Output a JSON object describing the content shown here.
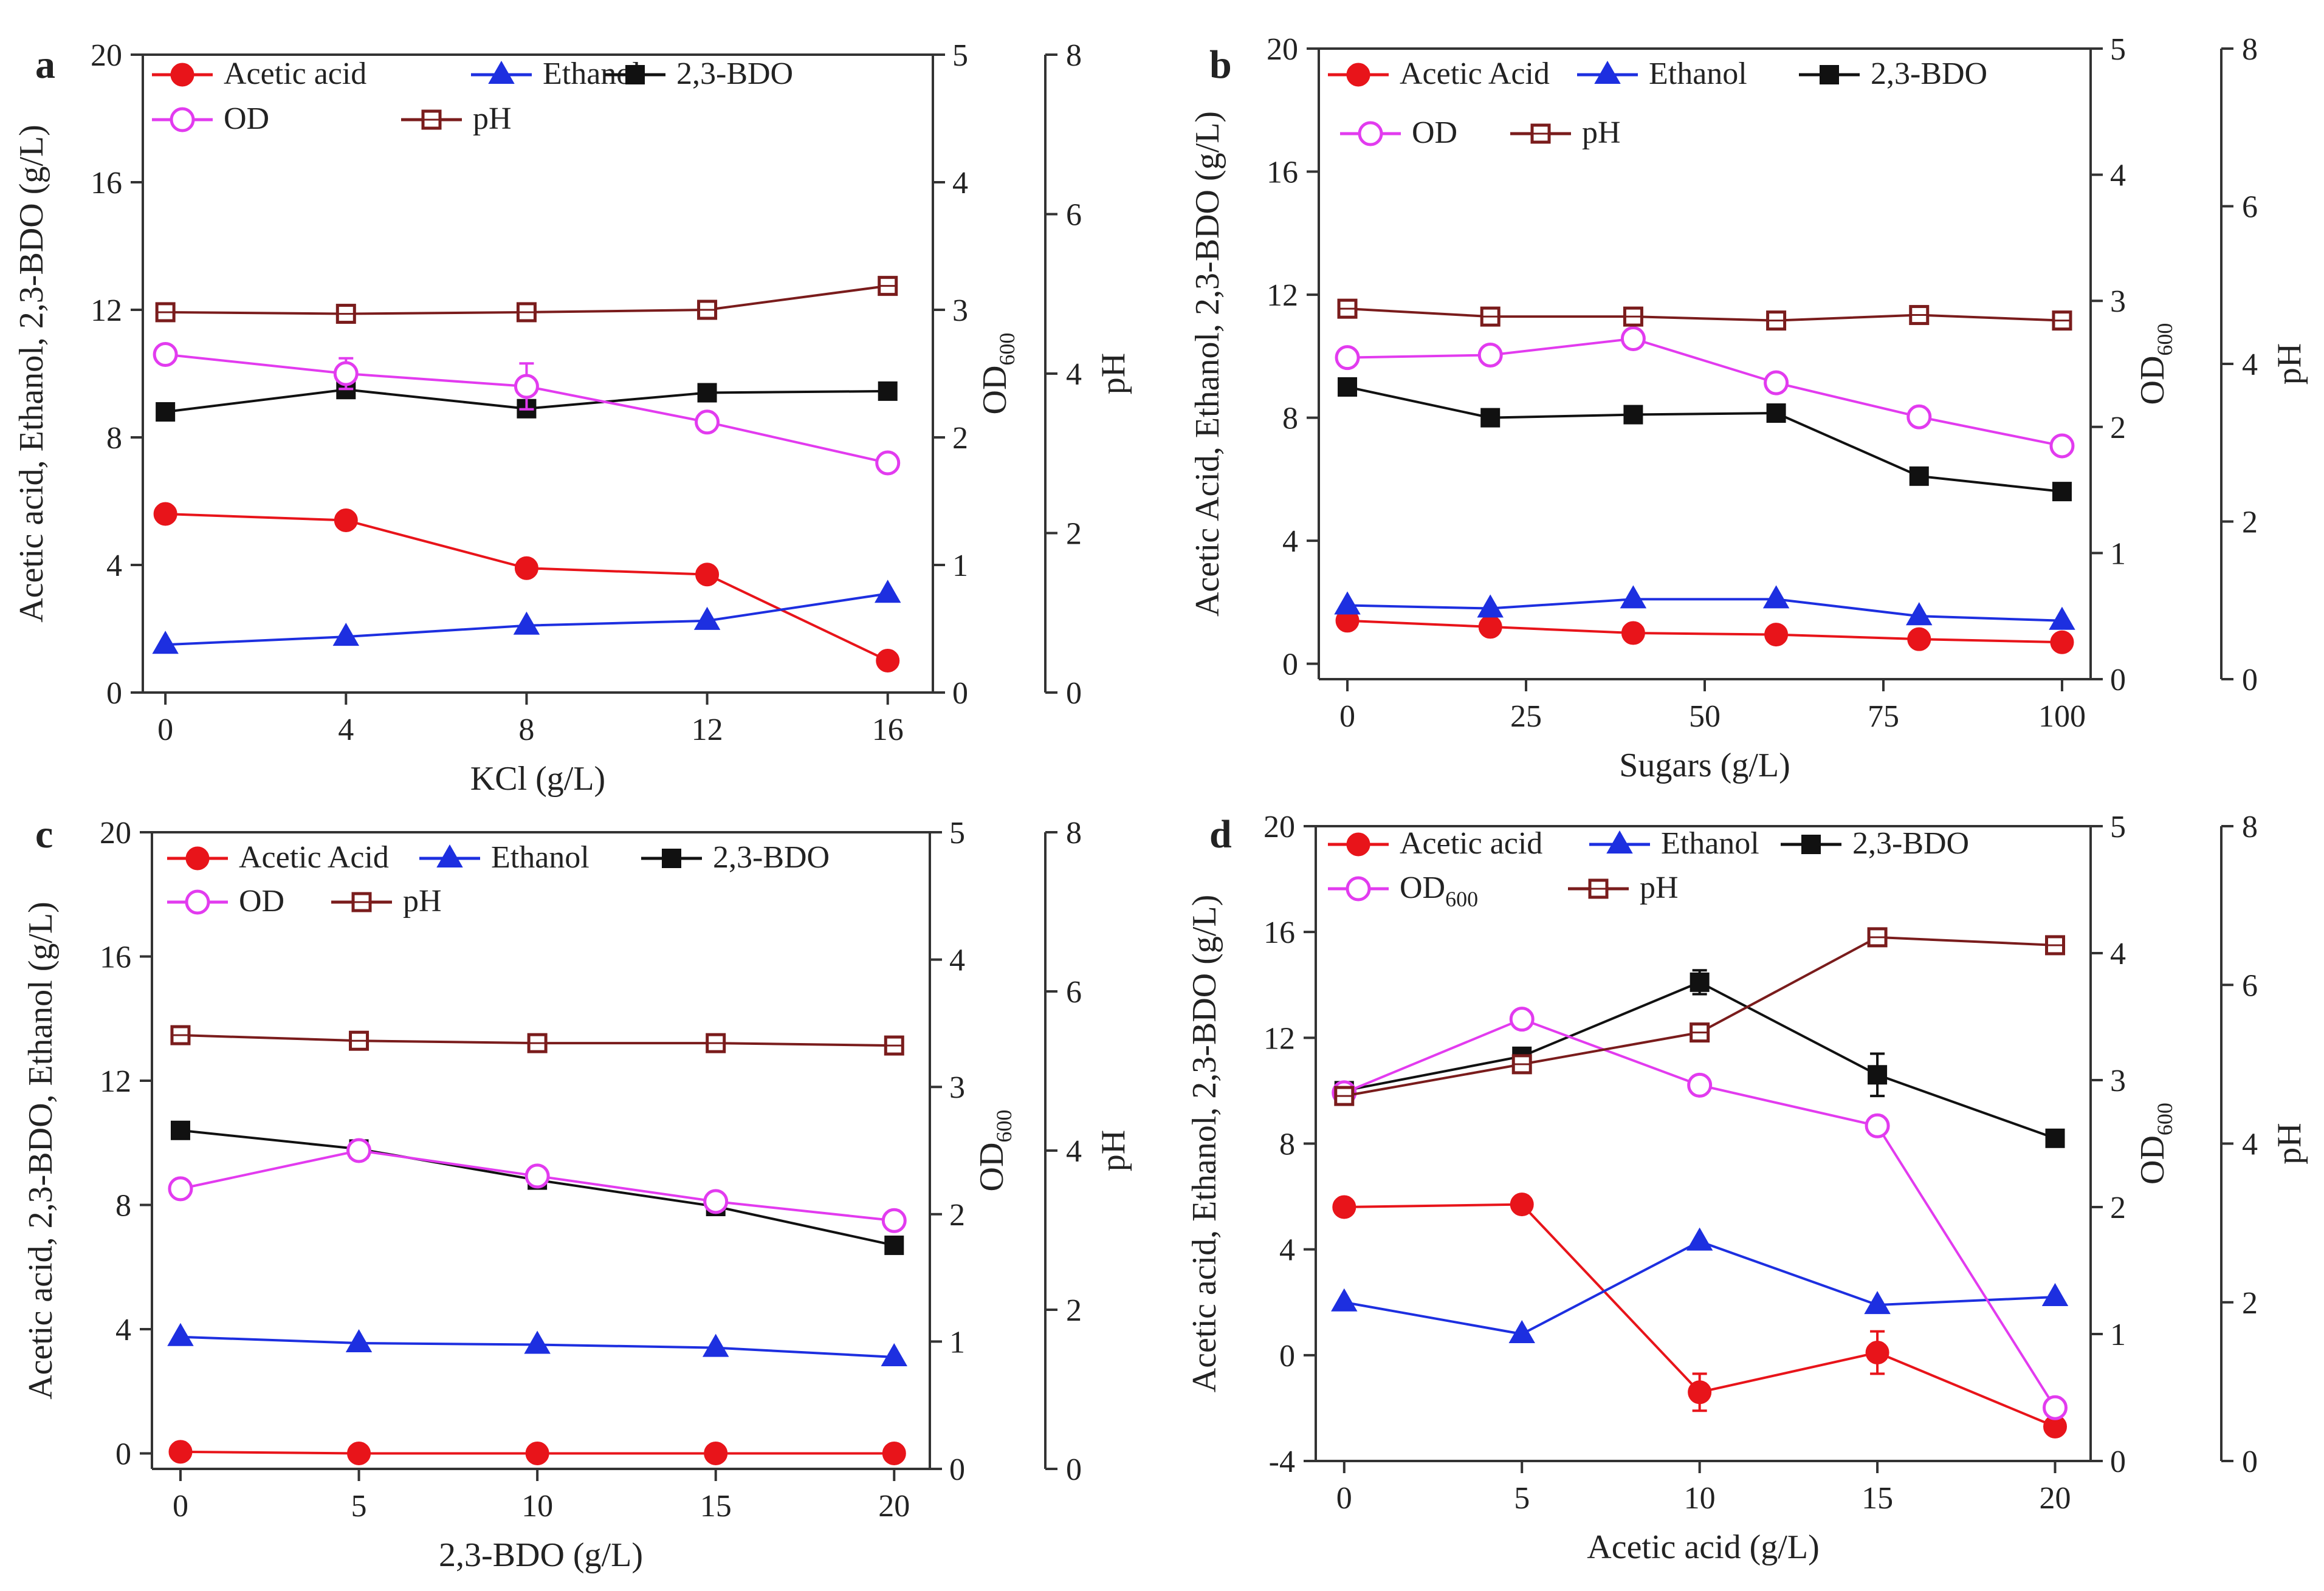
{
  "colors": {
    "axis": "#333333",
    "acetic": "#e8141a",
    "ethanol": "#1d2fe0",
    "bdo": "#111111",
    "od": "#e23bef",
    "ph": "#7a1c1c"
  },
  "chart_data": [
    {
      "panel": "a",
      "type": "line",
      "xlabel": "KCl  (g/L)",
      "ylabel": "Acetic acid, Ethanol, 2,3-BDO (g/L)",
      "y2label": "OD",
      "y2label_sub": "600",
      "y3label": "pH",
      "x": [
        0,
        4,
        8,
        12,
        16
      ],
      "xlim": [
        -0.5,
        17
      ],
      "xticks": [
        0,
        4,
        8,
        12,
        16
      ],
      "xtick_labels": [
        "0",
        "4",
        "8",
        "12",
        "16"
      ],
      "ylim": [
        0,
        20
      ],
      "yticks": [
        0,
        4,
        8,
        12,
        16,
        20
      ],
      "ytick_labels": [
        "0",
        "4",
        "8",
        "12",
        "16",
        "20"
      ],
      "y2lim": [
        0,
        5
      ],
      "y2ticks": [
        0,
        1,
        2,
        3,
        4,
        5
      ],
      "y2tick_labels": [
        "0",
        "1",
        "2",
        "3",
        "4",
        "5"
      ],
      "y3lim": [
        0,
        8
      ],
      "y3ticks": [
        0,
        2,
        4,
        6,
        8
      ],
      "y3tick_labels": [
        "0",
        "2",
        "4",
        "6",
        "8"
      ],
      "series": [
        {
          "key": "acetic",
          "name": "Acetic acid",
          "axis": "left",
          "marker": "circle-filled",
          "values": [
            5.6,
            5.4,
            3.9,
            3.7,
            1.0
          ]
        },
        {
          "key": "ethanol",
          "name": "Ethanol",
          "axis": "left",
          "marker": "triangle-filled",
          "values": [
            1.5,
            1.75,
            2.1,
            2.25,
            3.1
          ]
        },
        {
          "key": "bdo",
          "name": "2,3-BDO",
          "axis": "left",
          "marker": "square-filled",
          "values": [
            8.8,
            9.5,
            8.9,
            9.4,
            9.45
          ]
        },
        {
          "key": "od",
          "name": "OD",
          "axis": "right",
          "marker": "circle-open",
          "values": [
            2.65,
            2.5,
            2.4,
            2.12,
            1.8
          ],
          "errors": [
            0,
            0.12,
            0.18,
            0,
            0
          ]
        },
        {
          "key": "ph",
          "name": "pH",
          "axis": "outer",
          "marker": "square-open",
          "values": [
            4.77,
            4.75,
            4.77,
            4.8,
            5.1
          ]
        }
      ],
      "legend": [
        {
          "key": "acetic",
          "label": "Acetic acid"
        },
        {
          "key": "ethanol",
          "label": "Ethanol"
        },
        {
          "key": "bdo",
          "label": "2,3-BDO"
        },
        {
          "key": "od",
          "label": "OD"
        },
        {
          "key": "ph",
          "label": "pH"
        }
      ]
    },
    {
      "panel": "b",
      "type": "line",
      "xlabel": "Sugars (g/L)",
      "ylabel": "Acetic Acid, Ethanol, 2,3-BDO (g/L)",
      "y2label": "OD",
      "y2label_sub": "600",
      "y3label": "pH",
      "x": [
        0,
        20,
        40,
        60,
        80,
        100
      ],
      "xlim": [
        -4,
        104
      ],
      "xticks": [
        0,
        25,
        50,
        75,
        100
      ],
      "xtick_labels": [
        "0",
        "25",
        "50",
        "75",
        "100"
      ],
      "ylim": [
        -0.5,
        20
      ],
      "yticks": [
        0,
        4,
        8,
        12,
        16,
        20
      ],
      "ytick_labels": [
        "0",
        "4",
        "8",
        "12",
        "16",
        "20"
      ],
      "y2lim": [
        0,
        5
      ],
      "y2ticks": [
        0,
        1,
        2,
        3,
        4,
        5
      ],
      "y2tick_labels": [
        "0",
        "1",
        "2",
        "3",
        "4",
        "5"
      ],
      "y3lim": [
        0,
        8
      ],
      "y3ticks": [
        0,
        2,
        4,
        6,
        8
      ],
      "y3tick_labels": [
        "0",
        "2",
        "4",
        "6",
        "8"
      ],
      "series": [
        {
          "key": "acetic",
          "name": "Acetic Acid",
          "axis": "left",
          "marker": "circle-filled",
          "values": [
            1.4,
            1.2,
            1.0,
            0.95,
            0.8,
            0.7
          ]
        },
        {
          "key": "ethanol",
          "name": "Ethanol",
          "axis": "left",
          "marker": "triangle-filled",
          "values": [
            1.9,
            1.8,
            2.1,
            2.1,
            1.55,
            1.4
          ]
        },
        {
          "key": "bdo",
          "name": "2,3-BDO",
          "axis": "left",
          "marker": "square-filled",
          "values": [
            9.0,
            8.0,
            8.1,
            8.15,
            6.1,
            5.6
          ]
        },
        {
          "key": "od",
          "name": "OD",
          "axis": "right",
          "marker": "circle-open",
          "values": [
            2.55,
            2.57,
            2.7,
            2.35,
            2.08,
            1.85
          ]
        },
        {
          "key": "ph",
          "name": "pH",
          "axis": "outer",
          "marker": "square-open",
          "values": [
            4.7,
            4.6,
            4.6,
            4.55,
            4.62,
            4.55
          ]
        }
      ],
      "legend": [
        {
          "key": "acetic",
          "label": "Acetic Acid"
        },
        {
          "key": "ethanol",
          "label": "Ethanol"
        },
        {
          "key": "bdo",
          "label": "2,3-BDO"
        },
        {
          "key": "od",
          "label": "OD"
        },
        {
          "key": "ph",
          "label": "pH"
        }
      ]
    },
    {
      "panel": "c",
      "type": "line",
      "xlabel": "2,3-BDO (g/L)",
      "ylabel": "Acetic acid, 2,3-BDO, Ethanol (g/L)",
      "y2label": "OD",
      "y2label_sub": "600",
      "y3label": "pH",
      "x": [
        0,
        5,
        10,
        15,
        20
      ],
      "xlim": [
        -0.8,
        21
      ],
      "xticks": [
        0,
        5,
        10,
        15,
        20
      ],
      "xtick_labels": [
        "0",
        "5",
        "10",
        "15",
        "20"
      ],
      "ylim": [
        -0.5,
        20
      ],
      "yticks": [
        0,
        4,
        8,
        12,
        16,
        20
      ],
      "ytick_labels": [
        "0",
        "4",
        "8",
        "12",
        "16",
        "20"
      ],
      "y2lim": [
        0,
        5
      ],
      "y2ticks": [
        0,
        1,
        2,
        3,
        4,
        5
      ],
      "y2tick_labels": [
        "0",
        "1",
        "2",
        "3",
        "4",
        "5"
      ],
      "y3lim": [
        0,
        8
      ],
      "y3ticks": [
        0,
        2,
        4,
        6,
        8
      ],
      "y3tick_labels": [
        "0",
        "2",
        "4",
        "6",
        "8"
      ],
      "series": [
        {
          "key": "acetic",
          "name": "Acetic Acid",
          "axis": "left",
          "marker": "circle-filled",
          "values": [
            0.05,
            0.0,
            0.0,
            0.0,
            0.0
          ]
        },
        {
          "key": "ethanol",
          "name": "Ethanol",
          "axis": "left",
          "marker": "triangle-filled",
          "values": [
            3.75,
            3.55,
            3.5,
            3.4,
            3.1
          ]
        },
        {
          "key": "bdo",
          "name": "2,3-BDO",
          "axis": "left",
          "marker": "square-filled",
          "values": [
            10.4,
            9.8,
            8.8,
            7.95,
            6.7
          ]
        },
        {
          "key": "od",
          "name": "OD",
          "axis": "right",
          "marker": "circle-open",
          "values": [
            2.2,
            2.5,
            2.3,
            2.1,
            1.95
          ]
        },
        {
          "key": "ph",
          "name": "pH",
          "axis": "outer",
          "marker": "square-open",
          "values": [
            5.45,
            5.38,
            5.35,
            5.35,
            5.32
          ]
        }
      ],
      "legend": [
        {
          "key": "acetic",
          "label": "Acetic Acid"
        },
        {
          "key": "ethanol",
          "label": "Ethanol"
        },
        {
          "key": "bdo",
          "label": "2,3-BDO"
        },
        {
          "key": "od",
          "label": "OD"
        },
        {
          "key": "ph",
          "label": "pH"
        }
      ]
    },
    {
      "panel": "d",
      "type": "line",
      "xlabel": "Acetic acid (g/L)",
      "ylabel": "Acetic acid, Ethanol, 2,3-BDO (g/L)",
      "y2label": "OD",
      "y2label_sub": "600",
      "y3label": "pH",
      "x": [
        0,
        5,
        10,
        15,
        20
      ],
      "xlim": [
        -0.8,
        21
      ],
      "xticks": [
        0,
        5,
        10,
        15,
        20
      ],
      "xtick_labels": [
        "0",
        "5",
        "10",
        "15",
        "20"
      ],
      "ylim": [
        -4,
        20
      ],
      "yticks": [
        -4,
        0,
        4,
        8,
        12,
        16,
        20
      ],
      "ytick_labels": [
        "-4",
        "0",
        "4",
        "8",
        "12",
        "16",
        "20"
      ],
      "y2lim": [
        0,
        5
      ],
      "y2ticks": [
        0,
        1,
        2,
        3,
        4,
        5
      ],
      "y2tick_labels": [
        "0",
        "1",
        "2",
        "3",
        "4",
        "5"
      ],
      "y3lim": [
        0,
        8
      ],
      "y3ticks": [
        0,
        2,
        4,
        6,
        8
      ],
      "y3tick_labels": [
        "0",
        "2",
        "4",
        "6",
        "8"
      ],
      "series": [
        {
          "key": "acetic",
          "name": "Acetic acid",
          "axis": "left",
          "marker": "circle-filled",
          "values": [
            5.6,
            5.7,
            -1.4,
            0.1,
            -2.7
          ],
          "errors": [
            0,
            0,
            0.7,
            0.8,
            0
          ]
        },
        {
          "key": "ethanol",
          "name": "Ethanol",
          "axis": "left",
          "marker": "triangle-filled",
          "values": [
            2.0,
            0.8,
            4.3,
            1.9,
            2.2
          ]
        },
        {
          "key": "bdo",
          "name": "2,3-BDO",
          "axis": "left",
          "marker": "square-filled",
          "values": [
            10.0,
            11.3,
            14.1,
            10.6,
            8.2
          ],
          "errors": [
            0,
            0,
            0.45,
            0.8,
            0
          ]
        },
        {
          "key": "od",
          "name": "OD",
          "axis": "right",
          "marker": "circle-open",
          "values": [
            2.9,
            3.48,
            2.96,
            2.64,
            0.42
          ]
        },
        {
          "key": "ph",
          "name": "pH",
          "axis": "outer",
          "marker": "square-open",
          "values": [
            4.6,
            5.0,
            5.4,
            6.6,
            6.5
          ]
        }
      ],
      "legend": [
        {
          "key": "acetic",
          "label": "Acetic acid"
        },
        {
          "key": "ethanol",
          "label": "Ethanol"
        },
        {
          "key": "bdo",
          "label": "2,3-BDO"
        },
        {
          "key": "od",
          "label": "OD",
          "sub": "600"
        },
        {
          "key": "ph",
          "label": "pH"
        }
      ]
    }
  ]
}
